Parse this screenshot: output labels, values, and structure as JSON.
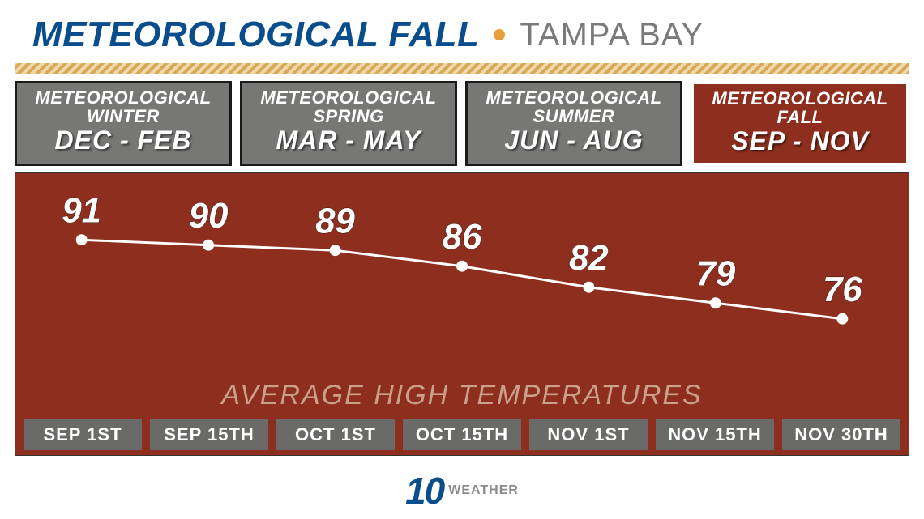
{
  "header": {
    "title": "METEOROLOGICAL FALL",
    "location": "TAMPA BAY",
    "title_color": "#0a4d8c",
    "location_color": "#7a7a7a",
    "dot_color": "#e8a13a"
  },
  "seasons": [
    {
      "line1a": "METEOROLOGICAL",
      "line1b": "WINTER",
      "line2": "DEC - FEB",
      "active": false
    },
    {
      "line1a": "METEOROLOGICAL",
      "line1b": "SPRING",
      "line2": "MAR - MAY",
      "active": false
    },
    {
      "line1a": "METEOROLOGICAL",
      "line1b": "SUMMER",
      "line2": "JUN - AUG",
      "active": false
    },
    {
      "line1a": "METEOROLOGICAL",
      "line1b": "FALL",
      "line2": "SEP - NOV",
      "active": true
    }
  ],
  "chart": {
    "type": "line",
    "subtitle": "AVERAGE HIGH TEMPERATURES",
    "background_color": "#8e2e1e",
    "line_color": "#ffffff",
    "line_width": 3,
    "marker_color": "#ffffff",
    "marker_radius": 7,
    "label_color": "#ffffff",
    "label_fontsize": 44,
    "ylim": [
      70,
      96
    ],
    "dates": [
      "SEP 1ST",
      "SEP 15TH",
      "OCT 1ST",
      "OCT 15TH",
      "NOV 1ST",
      "NOV 15TH",
      "NOV 30TH"
    ],
    "values": [
      91,
      90,
      89,
      86,
      82,
      79,
      76
    ],
    "date_box_bg": "#6a6a68",
    "date_box_color": "#ffffff",
    "subtitle_color": "#c9a08a"
  },
  "logo": {
    "brand": "10",
    "suffix": "WEATHER",
    "brand_color": "#0a4d8c",
    "suffix_color": "#8a8a8a"
  },
  "inactive_season_bg": "#777776",
  "active_season_bg": "#8e2e1e"
}
